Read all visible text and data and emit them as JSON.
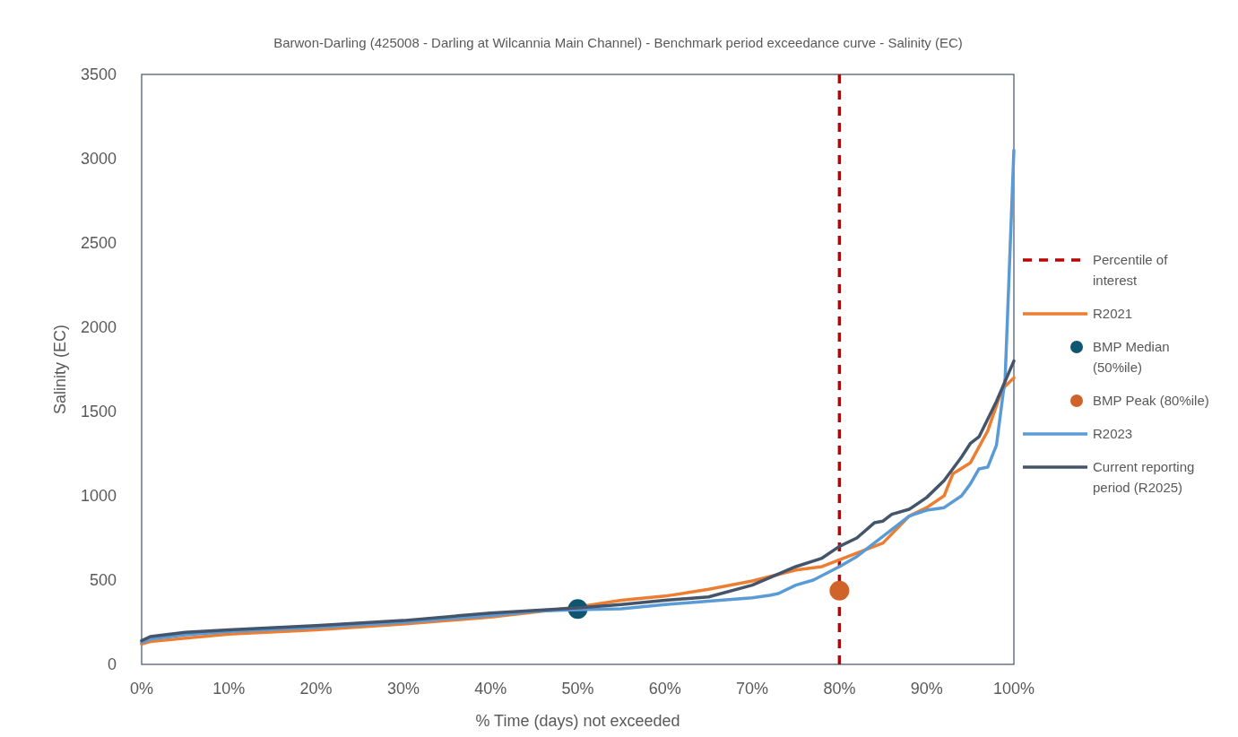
{
  "chart_data": {
    "type": "line",
    "title": "Barwon-Darling (425008 - Darling at Wilcannia Main Channel) - Benchmark period exceedance curve - Salinity (EC)",
    "xlabel": "% Time (days) not exceeded",
    "ylabel": "Salinity (EC)",
    "xlim": [
      0,
      100
    ],
    "xticks": [
      {
        "value": 0,
        "label": "0%"
      },
      {
        "value": 10,
        "label": "10%"
      },
      {
        "value": 20,
        "label": "20%"
      },
      {
        "value": 30,
        "label": "30%"
      },
      {
        "value": 40,
        "label": "40%"
      },
      {
        "value": 50,
        "label": "50%"
      },
      {
        "value": 60,
        "label": "60%"
      },
      {
        "value": 70,
        "label": "70%"
      },
      {
        "value": 80,
        "label": "80%"
      },
      {
        "value": 90,
        "label": "90%"
      },
      {
        "value": 100,
        "label": "100%"
      }
    ],
    "ylim": [
      0,
      3500
    ],
    "yticks": [
      0,
      500,
      1000,
      1500,
      2000,
      2500,
      3000,
      3500
    ],
    "grid": false,
    "legend": "right",
    "marker": "none",
    "line_style": "solid",
    "series": [
      {
        "name": "Percentile of interest",
        "type": "line",
        "line_style": "dashed",
        "color": "#c00000",
        "x": [
          80,
          80
        ],
        "values": [
          0,
          3500
        ]
      },
      {
        "name": "R2021",
        "type": "line",
        "color": "#ed7d31",
        "x": [
          0,
          1,
          5,
          10,
          20,
          30,
          40,
          45,
          50,
          55,
          60,
          65,
          70,
          75,
          78,
          80,
          82,
          85,
          88,
          90,
          92,
          93,
          95,
          97,
          98.5,
          99,
          100
        ],
        "values": [
          120,
          135,
          155,
          180,
          205,
          240,
          280,
          310,
          340,
          380,
          405,
          445,
          495,
          560,
          580,
          620,
          660,
          720,
          880,
          930,
          1000,
          1130,
          1195,
          1385,
          1610,
          1650,
          1700
        ]
      },
      {
        "name": "BMP Median (50%ile)",
        "type": "scatter",
        "marker": "circle",
        "color": "#0e5570",
        "x": [
          50
        ],
        "values": [
          328
        ]
      },
      {
        "name": "BMP Peak (80%ile)",
        "type": "scatter",
        "marker": "circle",
        "color": "#d0632a",
        "x": [
          80
        ],
        "values": [
          438
        ]
      },
      {
        "name": "R2023",
        "type": "line",
        "color": "#5b9bd5",
        "x": [
          0,
          1,
          5,
          10,
          20,
          30,
          40,
          45,
          50,
          55,
          60,
          65,
          70,
          72,
          73,
          75,
          77,
          80,
          82,
          85,
          88,
          90,
          92,
          94,
          95,
          96,
          97,
          98,
          99,
          100
        ],
        "values": [
          130,
          150,
          175,
          195,
          220,
          250,
          290,
          315,
          325,
          330,
          355,
          375,
          395,
          410,
          420,
          470,
          500,
          580,
          640,
          760,
          880,
          915,
          930,
          1000,
          1070,
          1160,
          1170,
          1300,
          1700,
          3050
        ]
      },
      {
        "name": "Current reporting period (R2025)",
        "type": "line",
        "color": "#44546a",
        "x": [
          0,
          1,
          5,
          10,
          20,
          30,
          40,
          50,
          55,
          60,
          65,
          70,
          75,
          78,
          80,
          82,
          84,
          85,
          86,
          88,
          90,
          92,
          94,
          95,
          96,
          98,
          100
        ],
        "values": [
          140,
          165,
          190,
          205,
          230,
          260,
          305,
          335,
          355,
          380,
          400,
          470,
          580,
          630,
          700,
          750,
          840,
          850,
          890,
          920,
          990,
          1090,
          1230,
          1310,
          1350,
          1560,
          1800
        ]
      }
    ]
  }
}
